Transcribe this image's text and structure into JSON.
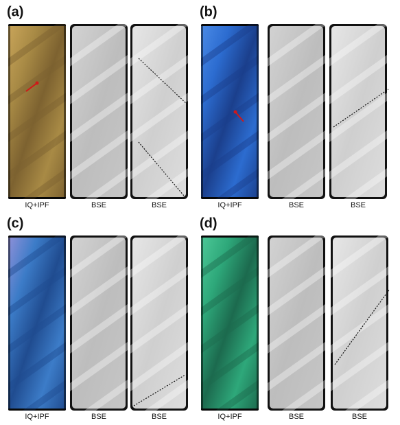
{
  "panels": [
    {
      "label": "(a)",
      "captions": [
        "IQ+IPF",
        "BSE",
        "BSE"
      ]
    },
    {
      "label": "(b)",
      "captions": [
        "IQ+IPF",
        "BSE",
        "BSE"
      ]
    },
    {
      "label": "(c)",
      "captions": [
        "IQ+IPF",
        "BSE",
        "BSE"
      ]
    },
    {
      "label": "(d)",
      "captions": [
        "IQ+IPF",
        "BSE",
        "BSE"
      ]
    }
  ]
}
